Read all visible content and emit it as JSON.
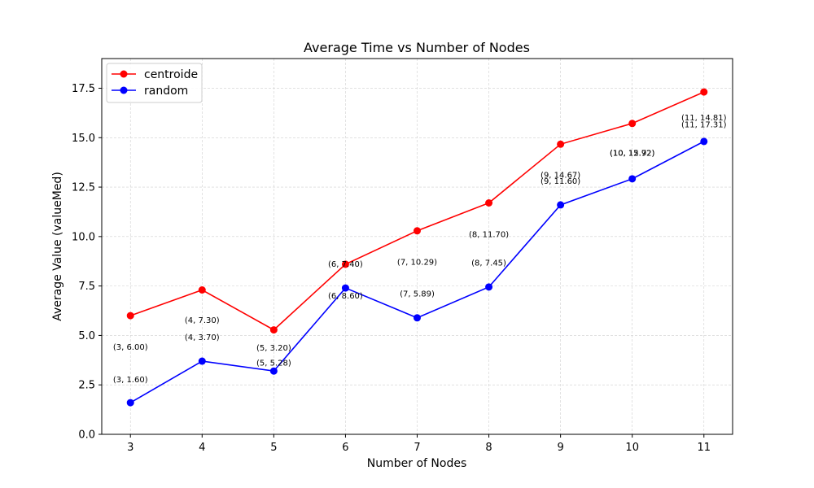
{
  "chart_data": {
    "type": "line",
    "title": "Average Time vs Number of Nodes",
    "xlabel": "Number of Nodes",
    "ylabel": "Average Value (valueMed)",
    "x": [
      3,
      4,
      5,
      6,
      7,
      8,
      9,
      10,
      11
    ],
    "xlim": [
      2.6,
      11.4
    ],
    "ylim": [
      0,
      19
    ],
    "yticks": [
      "0.0",
      "2.5",
      "5.0",
      "7.5",
      "10.0",
      "12.5",
      "15.0",
      "17.5"
    ],
    "grid": true,
    "legend_position": "top-left",
    "series": [
      {
        "name": "centroide",
        "color": "#ff0000",
        "values": [
          6.0,
          7.3,
          5.28,
          8.6,
          10.29,
          11.7,
          14.67,
          15.72,
          17.31
        ]
      },
      {
        "name": "random",
        "color": "#0000ff",
        "values": [
          1.6,
          3.7,
          3.2,
          7.4,
          5.89,
          7.45,
          11.6,
          12.92,
          14.81
        ]
      }
    ],
    "annotations": [
      {
        "text": "(3, 6.00)",
        "x": 3,
        "y": 4.4
      },
      {
        "text": "(3, 1.60)",
        "x": 3,
        "y": 2.75
      },
      {
        "text": "(4, 7.30)",
        "x": 4,
        "y": 5.75
      },
      {
        "text": "(4, 3.70)",
        "x": 4,
        "y": 4.9
      },
      {
        "text": "(5, 3.20)",
        "x": 5,
        "y": 4.35
      },
      {
        "text": "(5, 5.28)",
        "x": 5,
        "y": 3.6
      },
      {
        "text": "(6, 7.40)",
        "x": 6,
        "y": 8.6
      },
      {
        "text": "(6, 8.60)",
        "x": 6,
        "y": 7.0
      },
      {
        "text": "(7, 10.29)",
        "x": 7,
        "y": 8.7
      },
      {
        "text": "(7, 5.89)",
        "x": 7,
        "y": 7.1
      },
      {
        "text": "(8, 11.70)",
        "x": 8,
        "y": 10.1
      },
      {
        "text": "(8, 7.45)",
        "x": 8,
        "y": 8.65
      },
      {
        "text": "(9, 14.67)",
        "x": 9,
        "y": 13.1
      },
      {
        "text": "(9, 11.60)",
        "x": 9,
        "y": 12.8
      },
      {
        "text": "(10, 15.72)",
        "x": 10,
        "y": 14.2
      },
      {
        "text": "(10, 12.92)",
        "x": 10,
        "y": 14.2
      },
      {
        "text": "(11, 14.81)",
        "x": 11,
        "y": 16.0
      },
      {
        "text": "(11, 17.31)",
        "x": 11,
        "y": 15.65
      }
    ]
  }
}
